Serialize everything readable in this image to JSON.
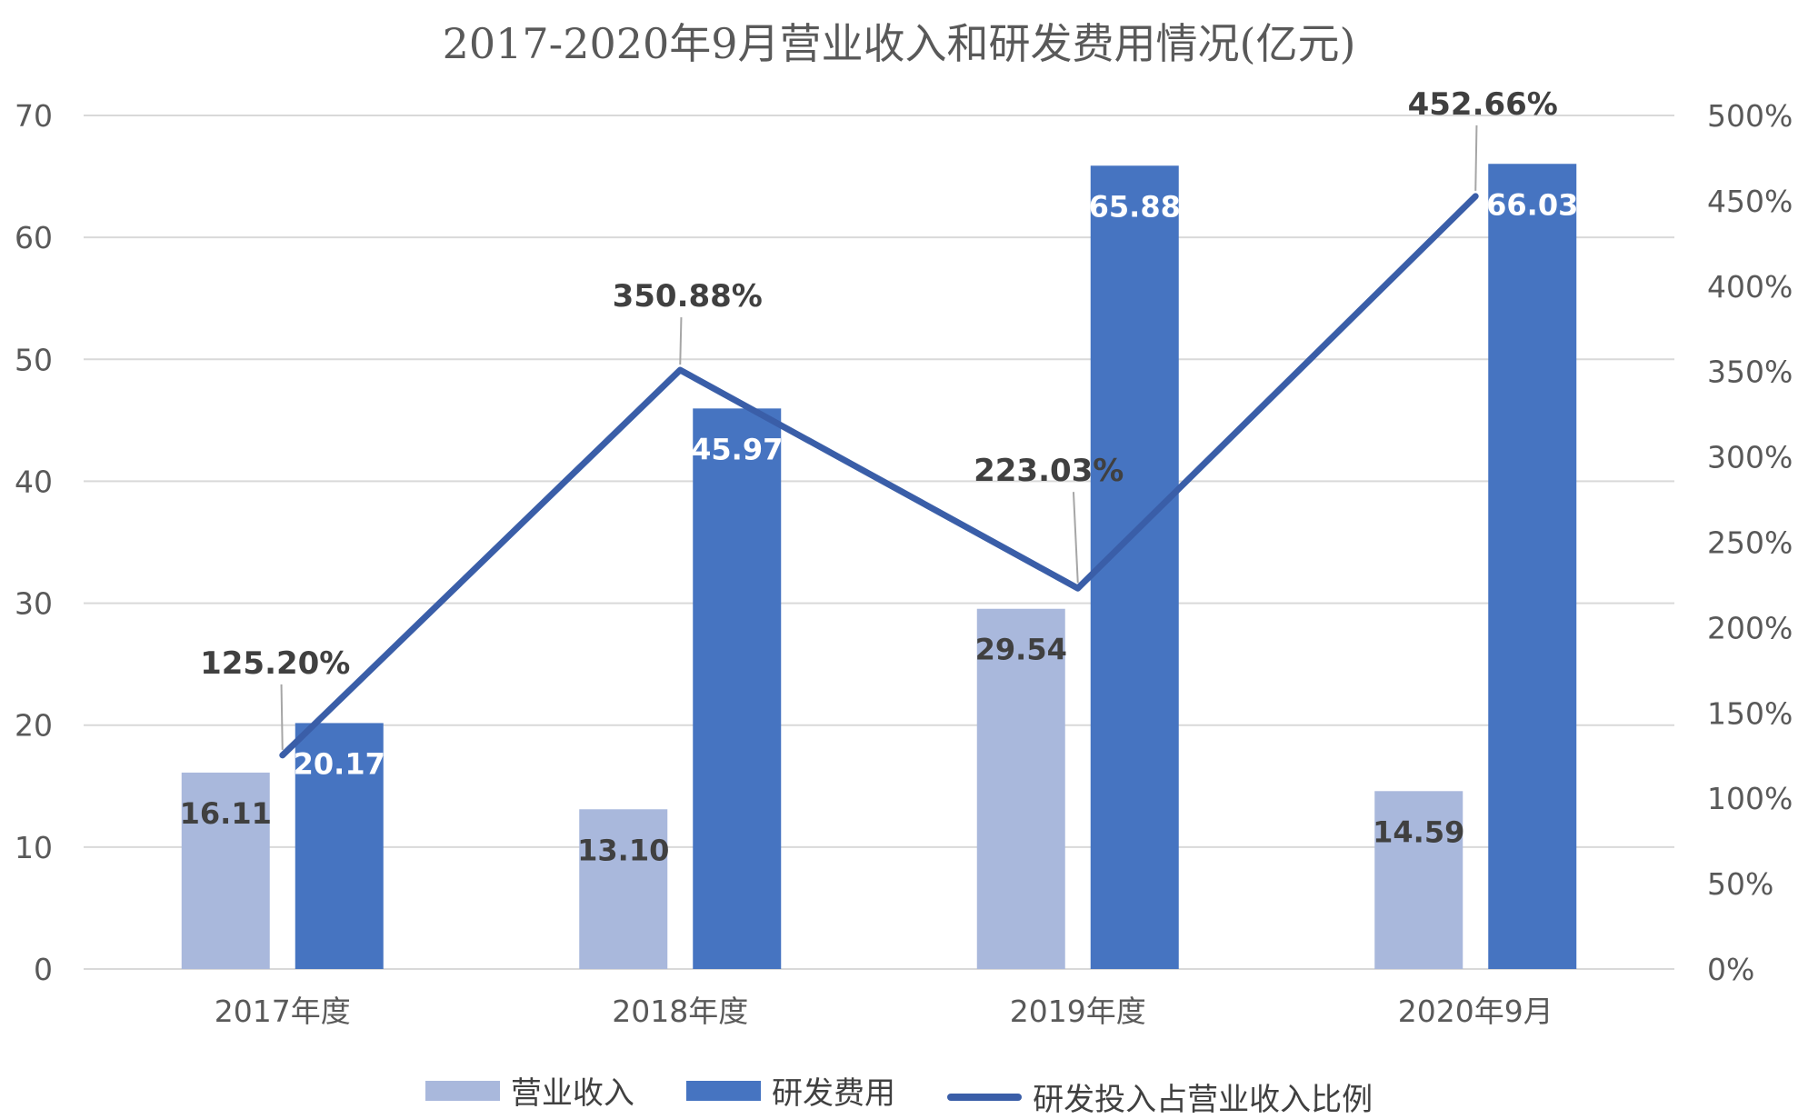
{
  "colors": {
    "revenue": "#a9b8dc",
    "rd": "#4674c1",
    "ratio_line": "#3a5ea8",
    "grid": "#d9d9d9",
    "axis_text": "#595959",
    "label_dark": "#404040",
    "label_light": "#ffffff"
  },
  "legend": {
    "revenue": "营业收入",
    "rd": "研发费用",
    "ratio": "研发投入占营业收入比例"
  },
  "chart_data": {
    "type": "bar",
    "title": "2017-2020年9月营业收入和研发费用情况(亿元)",
    "categories": [
      "2017年度",
      "2018年度",
      "2019年度",
      "2020年9月"
    ],
    "series": [
      {
        "name": "营业收入",
        "type": "bar",
        "axis": "left",
        "values": [
          16.11,
          13.1,
          29.54,
          14.59
        ],
        "labels": [
          "16.11",
          "13.10",
          "29.54",
          "14.59"
        ]
      },
      {
        "name": "研发费用",
        "type": "bar",
        "axis": "left",
        "values": [
          20.17,
          45.97,
          65.88,
          66.03
        ],
        "labels": [
          "20.17",
          "45.97",
          "65.88",
          "66.03"
        ]
      },
      {
        "name": "研发投入占营业收入比例",
        "type": "line",
        "axis": "right",
        "values": [
          125.2,
          350.88,
          223.03,
          452.66
        ],
        "labels": [
          "125.20%",
          "350.88%",
          "223.03%",
          "452.66%"
        ]
      }
    ],
    "y_left": {
      "min": 0,
      "max": 70,
      "ticks": [
        "0",
        "10",
        "20",
        "30",
        "40",
        "50",
        "60",
        "70"
      ]
    },
    "y_right": {
      "min": 0,
      "max": 500,
      "ticks": [
        "0%",
        "50%",
        "100%",
        "150%",
        "200%",
        "250%",
        "300%",
        "350%",
        "400%",
        "450%",
        "500%"
      ]
    },
    "grid": true,
    "legend_position": "bottom"
  }
}
